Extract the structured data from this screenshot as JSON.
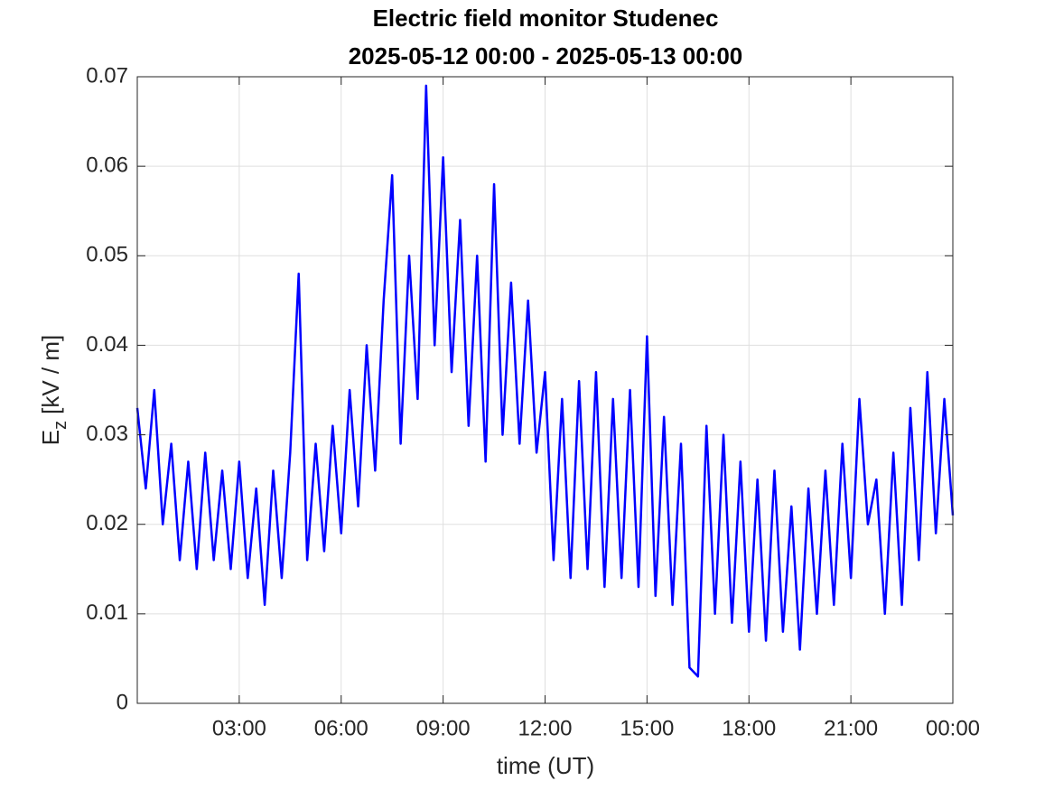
{
  "chart_data": {
    "type": "line",
    "title": "Electric field monitor Studenec",
    "subtitle": "2025-05-12 00:00 - 2025-05-13 00:00",
    "xlabel": "time (UT)",
    "ylabel": {
      "base": "E",
      "sub": "z",
      "unit": "[kV / m]"
    },
    "x": [
      0,
      0.25,
      0.5,
      0.75,
      1,
      1.25,
      1.5,
      1.75,
      2,
      2.25,
      2.5,
      2.75,
      3,
      3.25,
      3.5,
      3.75,
      4,
      4.25,
      4.5,
      4.75,
      5,
      5.25,
      5.5,
      5.75,
      6,
      6.25,
      6.5,
      6.75,
      7,
      7.25,
      7.5,
      7.75,
      8,
      8.25,
      8.5,
      8.75,
      9,
      9.25,
      9.5,
      9.75,
      10,
      10.25,
      10.5,
      10.75,
      11,
      11.25,
      11.5,
      11.75,
      12,
      12.25,
      12.5,
      12.75,
      13,
      13.25,
      13.5,
      13.75,
      14,
      14.25,
      14.5,
      14.75,
      15,
      15.25,
      15.5,
      15.75,
      16,
      16.25,
      16.5,
      16.75,
      17,
      17.25,
      17.5,
      17.75,
      18,
      18.25,
      18.5,
      18.75,
      19,
      19.25,
      19.5,
      19.75,
      20,
      20.25,
      20.5,
      20.75,
      21,
      21.25,
      21.5,
      21.75,
      22,
      22.25,
      22.5,
      22.75,
      23,
      23.25,
      23.5,
      23.75,
      24
    ],
    "series": [
      {
        "name": "Ez",
        "color": "#0000ff",
        "values": [
          0.033,
          0.024,
          0.035,
          0.02,
          0.029,
          0.016,
          0.027,
          0.015,
          0.028,
          0.016,
          0.026,
          0.015,
          0.027,
          0.014,
          0.024,
          0.011,
          0.026,
          0.014,
          0.028,
          0.048,
          0.016,
          0.029,
          0.017,
          0.031,
          0.019,
          0.035,
          0.022,
          0.04,
          0.026,
          0.045,
          0.059,
          0.029,
          0.05,
          0.034,
          0.069,
          0.04,
          0.061,
          0.037,
          0.054,
          0.031,
          0.05,
          0.027,
          0.058,
          0.03,
          0.047,
          0.029,
          0.045,
          0.028,
          0.037,
          0.016,
          0.034,
          0.014,
          0.036,
          0.015,
          0.037,
          0.013,
          0.034,
          0.014,
          0.035,
          0.013,
          0.041,
          0.012,
          0.032,
          0.011,
          0.029,
          0.004,
          0.003,
          0.031,
          0.01,
          0.03,
          0.009,
          0.027,
          0.008,
          0.025,
          0.007,
          0.026,
          0.008,
          0.022,
          0.006,
          0.024,
          0.01,
          0.026,
          0.011,
          0.029,
          0.014,
          0.034,
          0.02,
          0.025,
          0.01,
          0.028,
          0.011,
          0.033,
          0.016,
          0.037,
          0.019,
          0.034,
          0.021
        ]
      }
    ],
    "xlim": [
      0,
      24
    ],
    "xticks": [
      {
        "value": 3,
        "label": "03:00"
      },
      {
        "value": 6,
        "label": "06:00"
      },
      {
        "value": 9,
        "label": "09:00"
      },
      {
        "value": 12,
        "label": "12:00"
      },
      {
        "value": 15,
        "label": "15:00"
      },
      {
        "value": 18,
        "label": "18:00"
      },
      {
        "value": 21,
        "label": "21:00"
      },
      {
        "value": 24,
        "label": "00:00"
      }
    ],
    "ylim": [
      0,
      0.07
    ],
    "yticks": [
      0,
      0.01,
      0.02,
      0.03,
      0.04,
      0.05,
      0.06,
      0.07
    ],
    "grid": true
  }
}
